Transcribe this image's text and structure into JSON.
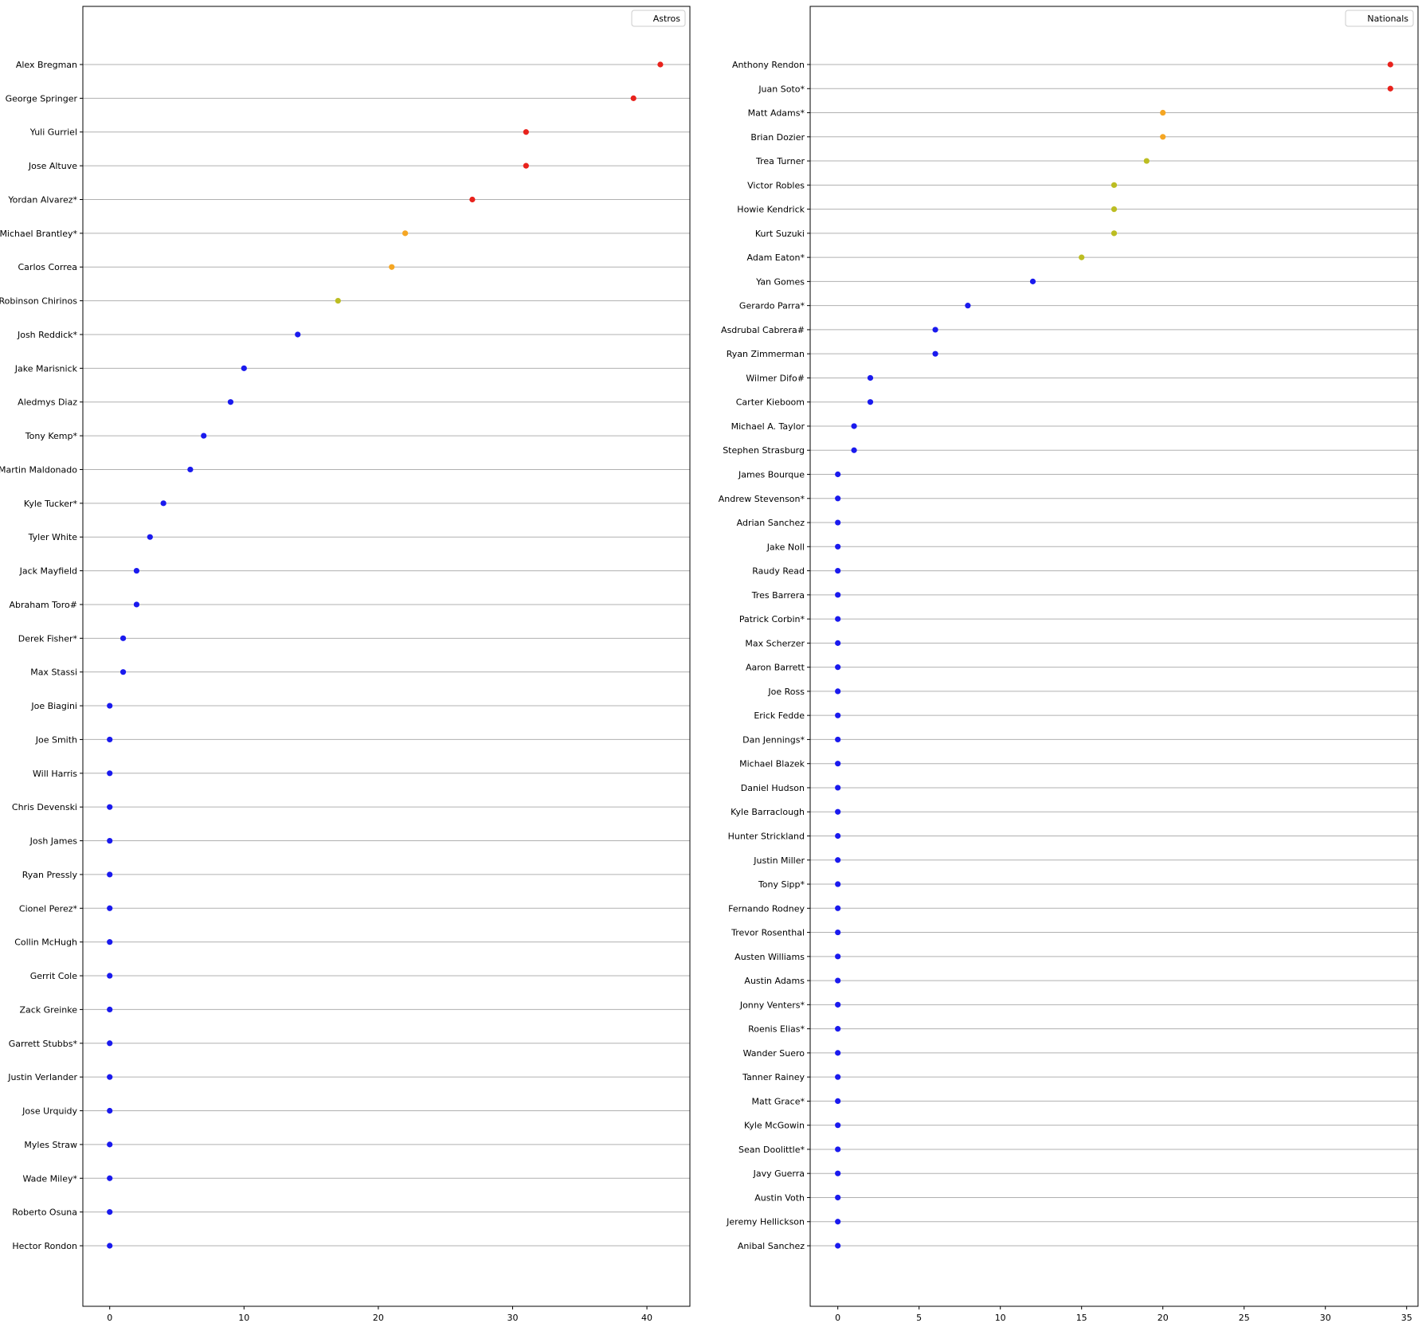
{
  "chart_data": [
    {
      "type": "scatter",
      "legend": {
        "label": "Astros",
        "position": "top-right"
      },
      "xlim": [
        -2,
        43.2
      ],
      "x_ticks": [
        0,
        10,
        20,
        30,
        40
      ],
      "grid": {
        "horizontal": true,
        "vertical": false
      },
      "colors": {
        "red": "#e8221c",
        "orange": "#f5a623",
        "olive": "#bcbd22",
        "blue": "#1a1aee",
        "grid": "#b0b0b0"
      },
      "points": [
        {
          "label": "Alex Bregman",
          "value": 41,
          "color": "red"
        },
        {
          "label": "George Springer",
          "value": 39,
          "color": "red"
        },
        {
          "label": "Yuli Gurriel",
          "value": 31,
          "color": "red"
        },
        {
          "label": "Jose Altuve",
          "value": 31,
          "color": "red"
        },
        {
          "label": "Yordan Alvarez*",
          "value": 27,
          "color": "red"
        },
        {
          "label": "Michael Brantley*",
          "value": 22,
          "color": "orange"
        },
        {
          "label": "Carlos Correa",
          "value": 21,
          "color": "orange"
        },
        {
          "label": "Robinson Chirinos",
          "value": 17,
          "color": "olive"
        },
        {
          "label": "Josh Reddick*",
          "value": 14,
          "color": "blue"
        },
        {
          "label": "Jake Marisnick",
          "value": 10,
          "color": "blue"
        },
        {
          "label": "Aledmys Diaz",
          "value": 9,
          "color": "blue"
        },
        {
          "label": "Tony Kemp*",
          "value": 7,
          "color": "blue"
        },
        {
          "label": "Martin Maldonado",
          "value": 6,
          "color": "blue"
        },
        {
          "label": "Kyle Tucker*",
          "value": 4,
          "color": "blue"
        },
        {
          "label": "Tyler White",
          "value": 3,
          "color": "blue"
        },
        {
          "label": "Jack Mayfield",
          "value": 2,
          "color": "blue"
        },
        {
          "label": "Abraham Toro#",
          "value": 2,
          "color": "blue"
        },
        {
          "label": "Derek Fisher*",
          "value": 1,
          "color": "blue"
        },
        {
          "label": "Max Stassi",
          "value": 1,
          "color": "blue"
        },
        {
          "label": "Joe Biagini",
          "value": 0,
          "color": "blue"
        },
        {
          "label": "Joe Smith",
          "value": 0,
          "color": "blue"
        },
        {
          "label": "Will Harris",
          "value": 0,
          "color": "blue"
        },
        {
          "label": "Chris Devenski",
          "value": 0,
          "color": "blue"
        },
        {
          "label": "Josh James",
          "value": 0,
          "color": "blue"
        },
        {
          "label": "Ryan Pressly",
          "value": 0,
          "color": "blue"
        },
        {
          "label": "Cionel Perez*",
          "value": 0,
          "color": "blue"
        },
        {
          "label": "Collin McHugh",
          "value": 0,
          "color": "blue"
        },
        {
          "label": "Gerrit Cole",
          "value": 0,
          "color": "blue"
        },
        {
          "label": "Zack Greinke",
          "value": 0,
          "color": "blue"
        },
        {
          "label": "Garrett Stubbs*",
          "value": 0,
          "color": "blue"
        },
        {
          "label": "Justin Verlander",
          "value": 0,
          "color": "blue"
        },
        {
          "label": "Jose Urquidy",
          "value": 0,
          "color": "blue"
        },
        {
          "label": "Myles Straw",
          "value": 0,
          "color": "blue"
        },
        {
          "label": "Wade Miley*",
          "value": 0,
          "color": "blue"
        },
        {
          "label": "Roberto Osuna",
          "value": 0,
          "color": "blue"
        },
        {
          "label": "Hector Rondon",
          "value": 0,
          "color": "blue"
        }
      ]
    },
    {
      "type": "scatter",
      "legend": {
        "label": "Nationals",
        "position": "top-right"
      },
      "xlim": [
        -1.7,
        35.7
      ],
      "x_ticks": [
        0,
        5,
        10,
        15,
        20,
        25,
        30,
        35
      ],
      "grid": {
        "horizontal": true,
        "vertical": false
      },
      "colors": {
        "red": "#e8221c",
        "orange": "#f5a623",
        "olive": "#bcbd22",
        "blue": "#1a1aee",
        "grid": "#b0b0b0"
      },
      "points": [
        {
          "label": "Anthony Rendon",
          "value": 34,
          "color": "red"
        },
        {
          "label": "Juan Soto*",
          "value": 34,
          "color": "red"
        },
        {
          "label": "Matt Adams*",
          "value": 20,
          "color": "orange"
        },
        {
          "label": "Brian Dozier",
          "value": 20,
          "color": "orange"
        },
        {
          "label": "Trea Turner",
          "value": 19,
          "color": "olive"
        },
        {
          "label": "Victor Robles",
          "value": 17,
          "color": "olive"
        },
        {
          "label": "Howie Kendrick",
          "value": 17,
          "color": "olive"
        },
        {
          "label": "Kurt Suzuki",
          "value": 17,
          "color": "olive"
        },
        {
          "label": "Adam Eaton*",
          "value": 15,
          "color": "olive"
        },
        {
          "label": "Yan Gomes",
          "value": 12,
          "color": "blue"
        },
        {
          "label": "Gerardo Parra*",
          "value": 8,
          "color": "blue"
        },
        {
          "label": "Asdrubal Cabrera#",
          "value": 6,
          "color": "blue"
        },
        {
          "label": "Ryan Zimmerman",
          "value": 6,
          "color": "blue"
        },
        {
          "label": "Wilmer Difo#",
          "value": 2,
          "color": "blue"
        },
        {
          "label": "Carter Kieboom",
          "value": 2,
          "color": "blue"
        },
        {
          "label": "Michael A. Taylor",
          "value": 1,
          "color": "blue"
        },
        {
          "label": "Stephen Strasburg",
          "value": 1,
          "color": "blue"
        },
        {
          "label": "James Bourque",
          "value": 0,
          "color": "blue"
        },
        {
          "label": "Andrew Stevenson*",
          "value": 0,
          "color": "blue"
        },
        {
          "label": "Adrian Sanchez",
          "value": 0,
          "color": "blue"
        },
        {
          "label": "Jake Noll",
          "value": 0,
          "color": "blue"
        },
        {
          "label": "Raudy Read",
          "value": 0,
          "color": "blue"
        },
        {
          "label": "Tres Barrera",
          "value": 0,
          "color": "blue"
        },
        {
          "label": "Patrick Corbin*",
          "value": 0,
          "color": "blue"
        },
        {
          "label": "Max Scherzer",
          "value": 0,
          "color": "blue"
        },
        {
          "label": "Aaron Barrett",
          "value": 0,
          "color": "blue"
        },
        {
          "label": "Joe Ross",
          "value": 0,
          "color": "blue"
        },
        {
          "label": "Erick Fedde",
          "value": 0,
          "color": "blue"
        },
        {
          "label": "Dan Jennings*",
          "value": 0,
          "color": "blue"
        },
        {
          "label": "Michael Blazek",
          "value": 0,
          "color": "blue"
        },
        {
          "label": "Daniel Hudson",
          "value": 0,
          "color": "blue"
        },
        {
          "label": "Kyle Barraclough",
          "value": 0,
          "color": "blue"
        },
        {
          "label": "Hunter Strickland",
          "value": 0,
          "color": "blue"
        },
        {
          "label": "Justin Miller",
          "value": 0,
          "color": "blue"
        },
        {
          "label": "Tony Sipp*",
          "value": 0,
          "color": "blue"
        },
        {
          "label": "Fernando Rodney",
          "value": 0,
          "color": "blue"
        },
        {
          "label": "Trevor Rosenthal",
          "value": 0,
          "color": "blue"
        },
        {
          "label": "Austen Williams",
          "value": 0,
          "color": "blue"
        },
        {
          "label": "Austin Adams",
          "value": 0,
          "color": "blue"
        },
        {
          "label": "Jonny Venters*",
          "value": 0,
          "color": "blue"
        },
        {
          "label": "Roenis Elias*",
          "value": 0,
          "color": "blue"
        },
        {
          "label": "Wander Suero",
          "value": 0,
          "color": "blue"
        },
        {
          "label": "Tanner Rainey",
          "value": 0,
          "color": "blue"
        },
        {
          "label": "Matt Grace*",
          "value": 0,
          "color": "blue"
        },
        {
          "label": "Kyle McGowin",
          "value": 0,
          "color": "blue"
        },
        {
          "label": "Sean Doolittle*",
          "value": 0,
          "color": "blue"
        },
        {
          "label": "Javy Guerra",
          "value": 0,
          "color": "blue"
        },
        {
          "label": "Austin Voth",
          "value": 0,
          "color": "blue"
        },
        {
          "label": "Jeremy Hellickson",
          "value": 0,
          "color": "blue"
        },
        {
          "label": "Anibal Sanchez",
          "value": 0,
          "color": "blue"
        }
      ]
    }
  ]
}
